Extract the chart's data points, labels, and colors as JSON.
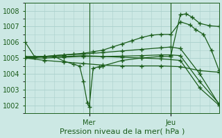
{
  "xlabel": "Pression niveau de la mer( hPa )",
  "background_color": "#cce8e4",
  "grid_color": "#aad0cc",
  "line_color": "#1a5c1a",
  "marker": "+",
  "markersize": 4,
  "linewidth": 0.9,
  "ylim": [
    1001.5,
    1008.5
  ],
  "xlim": [
    0,
    100
  ],
  "yticks": [
    1002,
    1003,
    1004,
    1005,
    1006,
    1007,
    1008
  ],
  "ytick_fontsize": 7,
  "xlabel_fontsize": 8,
  "xtick_fontsize": 7,
  "mer_x": 33,
  "jeu_x": 75,
  "lines": [
    [
      0,
      1006.0,
      5,
      1005.05,
      10,
      1005.1,
      15,
      1005.15,
      20,
      1005.2,
      25,
      1005.25,
      30,
      1005.3,
      35,
      1005.4,
      40,
      1005.5,
      45,
      1005.7,
      50,
      1005.9,
      55,
      1006.1,
      60,
      1006.3,
      65,
      1006.45,
      70,
      1006.5,
      75,
      1006.5,
      80,
      1007.3,
      85,
      1007.1,
      88,
      1006.8,
      92,
      1006.5,
      96,
      1005.5,
      100,
      1004.2
    ],
    [
      0,
      1005.0,
      5,
      1005.05,
      10,
      1005.1,
      15,
      1005.1,
      20,
      1004.8,
      25,
      1004.6,
      28,
      1004.5,
      30,
      1003.5,
      32,
      1002.15,
      33,
      1001.9,
      35,
      1004.35,
      38,
      1004.45,
      40,
      1004.5,
      50,
      1004.85,
      60,
      1005.0,
      70,
      1005.1,
      75,
      1005.1,
      80,
      1007.75,
      83,
      1007.8,
      86,
      1007.6,
      90,
      1007.2,
      95,
      1007.05,
      100,
      1007.0
    ],
    [
      0,
      1005.0,
      10,
      1004.85,
      20,
      1004.75,
      30,
      1004.65,
      40,
      1004.55,
      50,
      1004.5,
      60,
      1004.5,
      70,
      1004.5,
      80,
      1004.45,
      90,
      1004.2,
      100,
      1004.1
    ],
    [
      0,
      1005.1,
      10,
      1005.1,
      20,
      1005.1,
      30,
      1005.15,
      40,
      1005.1,
      50,
      1005.05,
      60,
      1005.0,
      70,
      1004.95,
      80,
      1004.85,
      90,
      1003.1,
      100,
      1002.0
    ],
    [
      0,
      1005.05,
      10,
      1005.1,
      20,
      1005.2,
      30,
      1005.25,
      40,
      1005.35,
      50,
      1005.45,
      60,
      1005.55,
      70,
      1005.65,
      75,
      1005.7,
      80,
      1005.6,
      90,
      1004.0,
      100,
      1002.05
    ],
    [
      0,
      1005.0,
      10,
      1005.0,
      20,
      1005.05,
      30,
      1005.1,
      40,
      1005.1,
      50,
      1005.12,
      60,
      1005.15,
      70,
      1005.2,
      75,
      1005.2,
      80,
      1005.15,
      90,
      1003.5,
      100,
      1002.1
    ]
  ]
}
